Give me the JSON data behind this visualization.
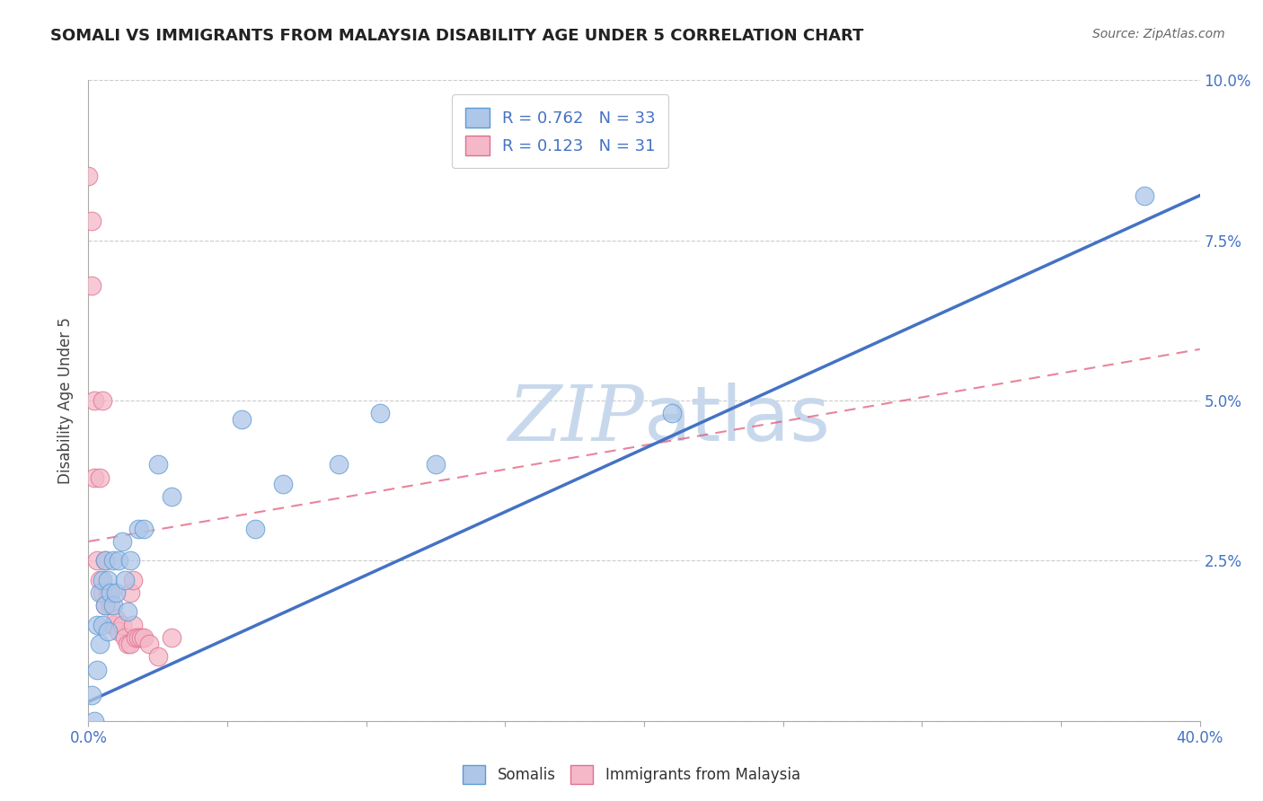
{
  "title": "SOMALI VS IMMIGRANTS FROM MALAYSIA DISABILITY AGE UNDER 5 CORRELATION CHART",
  "source": "Source: ZipAtlas.com",
  "ylabel_label": "Disability Age Under 5",
  "xmin": 0.0,
  "xmax": 0.4,
  "ymin": 0.0,
  "ymax": 0.1,
  "xticks": [
    0.0,
    0.05,
    0.1,
    0.15,
    0.2,
    0.25,
    0.3,
    0.35,
    0.4
  ],
  "xtick_first": "0.0%",
  "xtick_last": "40.0%",
  "yticks": [
    0.0,
    0.025,
    0.05,
    0.075,
    0.1
  ],
  "ytick_labels_right": [
    "",
    "2.5%",
    "5.0%",
    "7.5%",
    "10.0%"
  ],
  "somali_R": 0.762,
  "somali_N": 33,
  "malaysia_R": 0.123,
  "malaysia_N": 31,
  "somali_color": "#aec6e8",
  "somali_edge_color": "#5b9bd5",
  "somali_line_color": "#4472c4",
  "malaysia_color": "#f4b8c8",
  "malaysia_edge_color": "#e07090",
  "malaysia_line_color": "#e05070",
  "tick_label_color": "#4472c4",
  "watermark_color": "#c8d8ec",
  "background_color": "#ffffff",
  "grid_color": "#cccccc",
  "somali_x": [
    0.001,
    0.002,
    0.003,
    0.003,
    0.004,
    0.004,
    0.005,
    0.005,
    0.006,
    0.006,
    0.007,
    0.007,
    0.008,
    0.009,
    0.009,
    0.01,
    0.011,
    0.012,
    0.013,
    0.014,
    0.015,
    0.018,
    0.02,
    0.025,
    0.03,
    0.055,
    0.06,
    0.07,
    0.09,
    0.105,
    0.125,
    0.21,
    0.38
  ],
  "somali_y": [
    0.004,
    0.0,
    0.008,
    0.015,
    0.012,
    0.02,
    0.015,
    0.022,
    0.018,
    0.025,
    0.014,
    0.022,
    0.02,
    0.018,
    0.025,
    0.02,
    0.025,
    0.028,
    0.022,
    0.017,
    0.025,
    0.03,
    0.03,
    0.04,
    0.035,
    0.047,
    0.03,
    0.037,
    0.04,
    0.048,
    0.04,
    0.048,
    0.082
  ],
  "malaysia_x": [
    0.0,
    0.001,
    0.001,
    0.002,
    0.002,
    0.003,
    0.004,
    0.004,
    0.005,
    0.005,
    0.006,
    0.006,
    0.007,
    0.008,
    0.009,
    0.01,
    0.011,
    0.012,
    0.013,
    0.014,
    0.015,
    0.015,
    0.016,
    0.016,
    0.017,
    0.018,
    0.019,
    0.02,
    0.022,
    0.025,
    0.03
  ],
  "malaysia_y": [
    0.085,
    0.078,
    0.068,
    0.05,
    0.038,
    0.025,
    0.038,
    0.022,
    0.05,
    0.02,
    0.025,
    0.018,
    0.02,
    0.018,
    0.015,
    0.016,
    0.014,
    0.015,
    0.013,
    0.012,
    0.012,
    0.02,
    0.015,
    0.022,
    0.013,
    0.013,
    0.013,
    0.013,
    0.012,
    0.01,
    0.013
  ],
  "somali_trend_x": [
    0.0,
    0.4
  ],
  "somali_trend_y": [
    0.003,
    0.082
  ],
  "malaysia_trend_x": [
    0.0,
    0.4
  ],
  "malaysia_trend_y": [
    0.028,
    0.058
  ]
}
